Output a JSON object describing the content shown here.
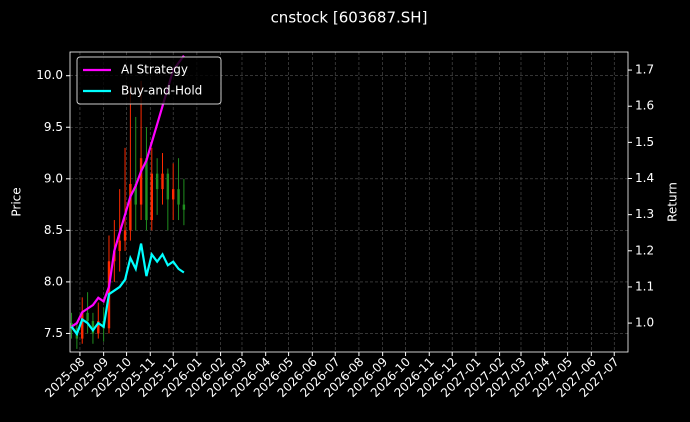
{
  "chart_data": {
    "type": "candlestick",
    "title": "cnstock [603687.SH]",
    "y_label": "Price",
    "y2_label": "Return",
    "x": [
      "2025-07-21",
      "2025-07-28",
      "2025-08-04",
      "2025-08-11",
      "2025-08-18",
      "2025-08-25",
      "2025-09-01",
      "2025-09-08",
      "2025-09-15",
      "2025-09-22",
      "2025-09-29",
      "2025-10-06",
      "2025-10-13",
      "2025-10-20",
      "2025-10-27",
      "2025-11-03",
      "2025-11-10",
      "2025-11-17",
      "2025-11-24",
      "2025-12-01",
      "2025-12-08",
      "2025-12-15"
    ],
    "open": [
      7.6,
      7.55,
      7.45,
      7.7,
      7.62,
      7.5,
      7.62,
      7.55,
      8.2,
      8.3,
      8.4,
      8.5,
      8.95,
      8.75,
      9.2,
      8.6,
      9.05,
      8.9,
      9.05,
      8.8,
      8.9,
      8.75
    ],
    "close": [
      7.55,
      7.45,
      7.7,
      7.62,
      7.5,
      7.62,
      7.55,
      8.2,
      8.3,
      8.4,
      8.5,
      8.95,
      8.75,
      9.2,
      8.6,
      9.05,
      8.9,
      9.05,
      8.8,
      8.9,
      8.75,
      8.7
    ],
    "high": [
      7.7,
      7.6,
      7.85,
      7.9,
      7.7,
      7.8,
      7.75,
      8.45,
      8.6,
      8.9,
      9.3,
      9.9,
      9.6,
      9.95,
      9.5,
      9.3,
      9.2,
      9.25,
      9.1,
      9.15,
      9.2,
      9.0
    ],
    "low": [
      7.45,
      7.35,
      7.4,
      7.5,
      7.4,
      7.45,
      7.42,
      7.5,
      8.0,
      8.1,
      8.3,
      8.4,
      8.5,
      8.6,
      8.5,
      8.5,
      8.65,
      8.75,
      8.5,
      8.6,
      8.6,
      8.55
    ],
    "up_color": "#ff2a00",
    "down_color": "#1f8f1f",
    "series": [
      {
        "name": "AI Strategy",
        "color": "#ff00ff",
        "axis": "y2",
        "values": [
          0.99,
          1.0,
          1.03,
          1.04,
          1.05,
          1.07,
          1.06,
          1.1,
          1.2,
          1.25,
          1.3,
          1.35,
          1.38,
          1.42,
          1.45,
          1.5,
          1.55,
          1.6,
          1.65,
          1.7,
          1.72,
          1.74
        ]
      },
      {
        "name": "Buy-and-Hold",
        "color": "#00ffff",
        "axis": "y2",
        "values": [
          0.99,
          0.97,
          1.01,
          1.0,
          0.98,
          1.0,
          0.99,
          1.08,
          1.09,
          1.1,
          1.12,
          1.18,
          1.15,
          1.22,
          1.13,
          1.19,
          1.17,
          1.19,
          1.16,
          1.17,
          1.15,
          1.14
        ]
      }
    ],
    "xlim": [
      "2025-07-19",
      "2027-07-19"
    ],
    "xticks": [
      "2025-08",
      "2025-09",
      "2025-10",
      "2025-11",
      "2025-12",
      "2026-01",
      "2026-02",
      "2026-03",
      "2026-04",
      "2026-05",
      "2026-06",
      "2026-07",
      "2026-08",
      "2026-09",
      "2026-10",
      "2026-11",
      "2026-12",
      "2027-01",
      "2027-02",
      "2027-03",
      "2027-04",
      "2027-05",
      "2027-06",
      "2027-07"
    ],
    "ylim": [
      7.32,
      10.23
    ],
    "yticks": [
      {
        "value": 7.5,
        "label": "7.5"
      },
      {
        "value": 8,
        "label": "8.0"
      },
      {
        "value": 8.5,
        "label": "8.5"
      },
      {
        "value": 9,
        "label": "9.0"
      },
      {
        "value": 9.5,
        "label": "9.5"
      },
      {
        "value": 10,
        "label": "10.0"
      }
    ],
    "y2lim": [
      0.92,
      1.75
    ],
    "y2ticks": [
      {
        "value": 1,
        "label": "1.0"
      },
      1.1,
      1.2,
      1.3,
      1.4,
      1.5,
      1.6,
      1.7
    ],
    "grid": true,
    "legend": "upper-left"
  }
}
